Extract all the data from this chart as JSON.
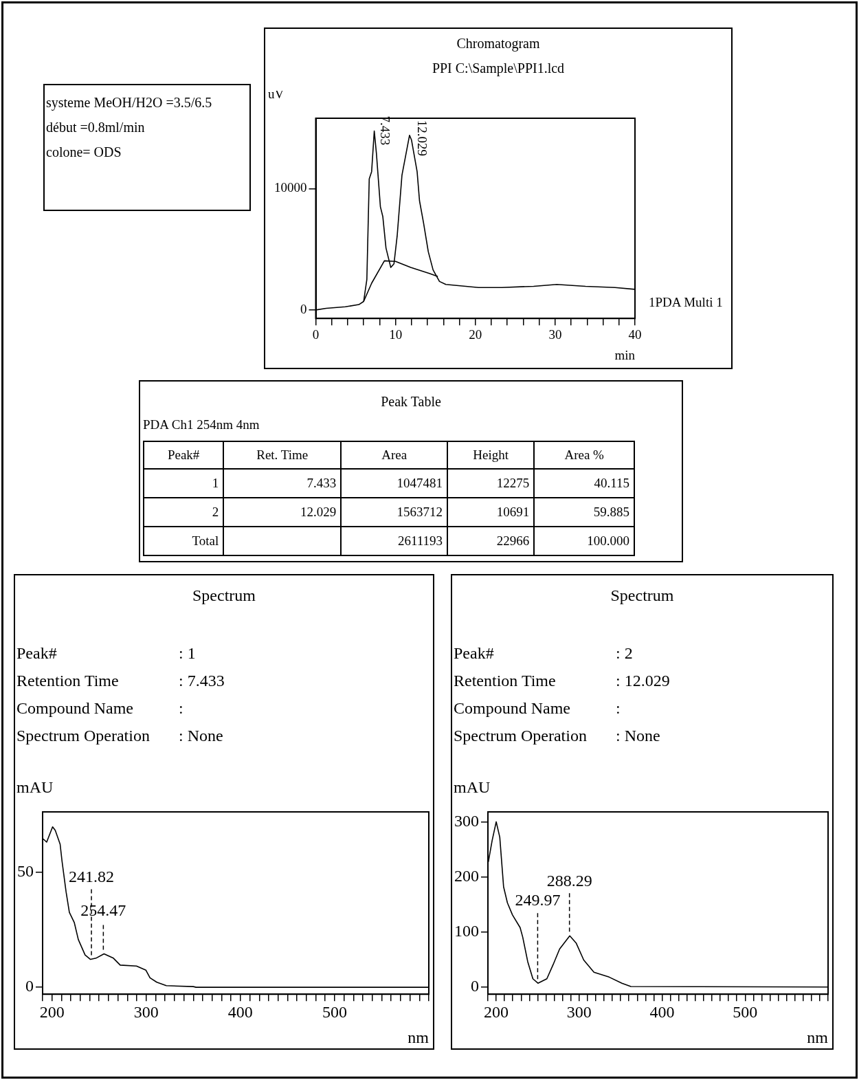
{
  "chart_data": [
    {
      "type": "other",
      "annotations": [
        "systeme MeOH/H2O =3.5/6.5",
        "début =0.8ml/min",
        "colone= ODS"
      ]
    },
    {
      "type": "line",
      "title": "Chromatogram",
      "subtitle": "PPI C:\\Sample\\PPI1.lcd",
      "xlabel": "min",
      "ylabel": "uV",
      "marker": "none",
      "xlim": [
        0,
        40
      ],
      "xticks": [
        0,
        {
          "value": 2,
          "label": null
        },
        {
          "value": 4,
          "label": null
        },
        {
          "value": 6,
          "label": null
        },
        {
          "value": 8,
          "label": null
        },
        10,
        {
          "value": 12,
          "label": null
        },
        {
          "value": 14,
          "label": null
        },
        {
          "value": 16,
          "label": null
        },
        {
          "value": 18,
          "label": null
        },
        20,
        {
          "value": 22,
          "label": null
        },
        {
          "value": 24,
          "label": null
        },
        {
          "value": 26,
          "label": null
        },
        {
          "value": 28,
          "label": null
        },
        30,
        {
          "value": 32,
          "label": null
        },
        {
          "value": 34,
          "label": null
        },
        {
          "value": 36,
          "label": null
        },
        {
          "value": 38,
          "label": null
        },
        40
      ],
      "ylim": [
        -700,
        15800
      ],
      "yticks": [
        0,
        10000
      ],
      "series": [
        {
          "name": "1PDA Multi 1",
          "color": "#000000",
          "x": [
            0,
            1.3,
            3.7,
            5.4,
            6,
            6.4,
            6.7,
            7,
            7.33,
            7.6,
            8.1,
            8.4,
            8.8,
            9.4,
            9.8,
            10.2,
            10.8,
            11.75,
            12,
            12.7,
            13,
            13.5,
            14.1,
            14.7,
            15.5,
            16.3,
            18.8,
            20.4,
            23.3,
            27.3,
            30.2,
            33.8,
            37.5,
            40
          ],
          "values": [
            0,
            130,
            260,
            440,
            700,
            2500,
            10800,
            11400,
            14750,
            12900,
            8500,
            7700,
            5100,
            3500,
            3800,
            6100,
            11100,
            14400,
            14000,
            11400,
            9000,
            7200,
            4800,
            3300,
            2350,
            2100,
            1950,
            1850,
            1850,
            1950,
            2100,
            1950,
            1850,
            1700
          ]
        },
        {
          "color": "#000000",
          "x": [
            6,
            7,
            8.6,
            10,
            11.9,
            14.3,
            15.3
          ],
          "values": [
            700,
            2200,
            4050,
            4000,
            3500,
            3000,
            2750
          ]
        }
      ],
      "annotations": [
        {
          "text": "7.433",
          "x": 7.433,
          "y": 14750
        },
        {
          "text": "12.029",
          "x": 12.029,
          "y": 14400
        }
      ]
    },
    {
      "type": "other",
      "title": "Peak Table",
      "subtitle": "PDA Ch1 254nm 4nm",
      "categories": [
        "Peak#",
        "Ret. Time",
        "Area",
        "Height",
        "Area %"
      ],
      "annotations": [
        "1",
        "7.433",
        "1047481",
        "12275",
        "40.115",
        "2",
        "12.029",
        "1563712",
        "10691",
        "59.885",
        "Total",
        null,
        "2611193",
        "22966",
        "100.000"
      ]
    },
    {
      "type": "line",
      "title": "Spectrum",
      "xlabel": "nm",
      "ylabel": "mAU",
      "marker": "none",
      "xlim": [
        190,
        600
      ],
      "xticks": [
        {
          "value": 190,
          "label": null
        },
        200,
        {
          "value": 210,
          "label": null
        },
        {
          "value": 220,
          "label": null
        },
        {
          "value": 230,
          "label": null
        },
        {
          "value": 240,
          "label": null
        },
        {
          "value": 250,
          "label": null
        },
        {
          "value": 260,
          "label": null
        },
        {
          "value": 270,
          "label": null
        },
        {
          "value": 280,
          "label": null
        },
        {
          "value": 290,
          "label": null
        },
        300,
        {
          "value": 310,
          "label": null
        },
        {
          "value": 320,
          "label": null
        },
        {
          "value": 330,
          "label": null
        },
        {
          "value": 340,
          "label": null
        },
        {
          "value": 350,
          "label": null
        },
        {
          "value": 360,
          "label": null
        },
        {
          "value": 370,
          "label": null
        },
        {
          "value": 380,
          "label": null
        },
        {
          "value": 390,
          "label": null
        },
        400,
        {
          "value": 410,
          "label": null
        },
        {
          "value": 420,
          "label": null
        },
        {
          "value": 430,
          "label": null
        },
        {
          "value": 440,
          "label": null
        },
        {
          "value": 450,
          "label": null
        },
        {
          "value": 460,
          "label": null
        },
        {
          "value": 470,
          "label": null
        },
        {
          "value": 480,
          "label": null
        },
        {
          "value": 490,
          "label": null
        },
        500,
        {
          "value": 510,
          "label": null
        },
        {
          "value": 520,
          "label": null
        },
        {
          "value": 530,
          "label": null
        },
        {
          "value": 540,
          "label": null
        },
        {
          "value": 550,
          "label": null
        },
        {
          "value": 560,
          "label": null
        },
        {
          "value": 570,
          "label": null
        },
        {
          "value": 580,
          "label": null
        },
        {
          "value": 590,
          "label": null
        },
        {
          "value": 600,
          "label": null
        }
      ],
      "ylim": [
        -3,
        76
      ],
      "yticks": [
        0,
        50
      ],
      "series": [
        {
          "color": "#000000",
          "x": [
            190.6,
            194.3,
            200.6,
            203.4,
            208.6,
            210.6,
            214.9,
            218.4,
            223.6,
            227.9,
            235.1,
            240.8,
            246.6,
            255.2,
            265.2,
            272.4,
            289.7,
            299.7,
            304,
            311.2,
            321.3,
            350,
            352.9,
            600
          ],
          "values": [
            64.3,
            62.9,
            69.5,
            68,
            62,
            54.7,
            41.4,
            32.5,
            28.1,
            20.7,
            14,
            12.1,
            12.6,
            14.5,
            12.6,
            9.6,
            9.2,
            7.4,
            4.1,
            2.2,
            0.7,
            0.3,
            0,
            0
          ]
        }
      ],
      "annotations": [
        "Peak#",
        ": 1",
        "Retention Time",
        ": 7.433",
        "Compound Name",
        ":",
        "Spectrum Operation",
        ": None",
        {
          "text": "241.82",
          "x": 241.82,
          "y": 12.1
        },
        {
          "text": "254.47",
          "x": 254.47,
          "y": 14.5
        }
      ]
    },
    {
      "type": "line",
      "title": "Spectrum",
      "xlabel": "nm",
      "ylabel": "mAU",
      "marker": "none",
      "xlim": [
        190,
        600
      ],
      "xticks": [
        {
          "value": 190,
          "label": null
        },
        200,
        {
          "value": 210,
          "label": null
        },
        {
          "value": 220,
          "label": null
        },
        {
          "value": 230,
          "label": null
        },
        {
          "value": 240,
          "label": null
        },
        {
          "value": 250,
          "label": null
        },
        {
          "value": 260,
          "label": null
        },
        {
          "value": 270,
          "label": null
        },
        {
          "value": 280,
          "label": null
        },
        {
          "value": 290,
          "label": null
        },
        300,
        {
          "value": 310,
          "label": null
        },
        {
          "value": 320,
          "label": null
        },
        {
          "value": 330,
          "label": null
        },
        {
          "value": 340,
          "label": null
        },
        {
          "value": 350,
          "label": null
        },
        {
          "value": 360,
          "label": null
        },
        {
          "value": 370,
          "label": null
        },
        {
          "value": 380,
          "label": null
        },
        {
          "value": 390,
          "label": null
        },
        400,
        {
          "value": 410,
          "label": null
        },
        {
          "value": 420,
          "label": null
        },
        {
          "value": 430,
          "label": null
        },
        {
          "value": 440,
          "label": null
        },
        {
          "value": 450,
          "label": null
        },
        {
          "value": 460,
          "label": null
        },
        {
          "value": 470,
          "label": null
        },
        {
          "value": 480,
          "label": null
        },
        {
          "value": 490,
          "label": null
        },
        500,
        {
          "value": 510,
          "label": null
        },
        {
          "value": 520,
          "label": null
        },
        {
          "value": 530,
          "label": null
        },
        {
          "value": 540,
          "label": null
        },
        {
          "value": 550,
          "label": null
        },
        {
          "value": 560,
          "label": null
        },
        {
          "value": 570,
          "label": null
        },
        {
          "value": 580,
          "label": null
        },
        {
          "value": 590,
          "label": null
        },
        {
          "value": 600,
          "label": null
        }
      ],
      "ylim": [
        -13,
        318
      ],
      "yticks": [
        0,
        100,
        200,
        300
      ],
      "series": [
        {
          "color": "#000000",
          "x": [
            190.5,
            195.1,
            200,
            204.3,
            208.9,
            213.5,
            219.6,
            228.8,
            231.9,
            238,
            244.2,
            250.3,
            261.05,
            268.7,
            276.4,
            288.65,
            296.3,
            305.5,
            317.8,
            336.2,
            351.5,
            362.3,
            600
          ],
          "values": [
            227,
            266,
            300,
            272,
            182,
            153,
            131,
            108,
            91,
            46,
            15,
            7,
            15,
            41,
            69,
            93,
            80,
            49,
            27,
            18,
            7,
            1,
            0
          ]
        }
      ],
      "annotations": [
        "Peak#",
        ": 2",
        "Retention Time",
        ": 12.029",
        "Compound Name",
        ":",
        "Spectrum Operation",
        ": None",
        {
          "text": "249.97",
          "x": 249.97,
          "y": 7
        },
        {
          "text": "288.29",
          "x": 288.29,
          "y": 93
        }
      ]
    }
  ]
}
